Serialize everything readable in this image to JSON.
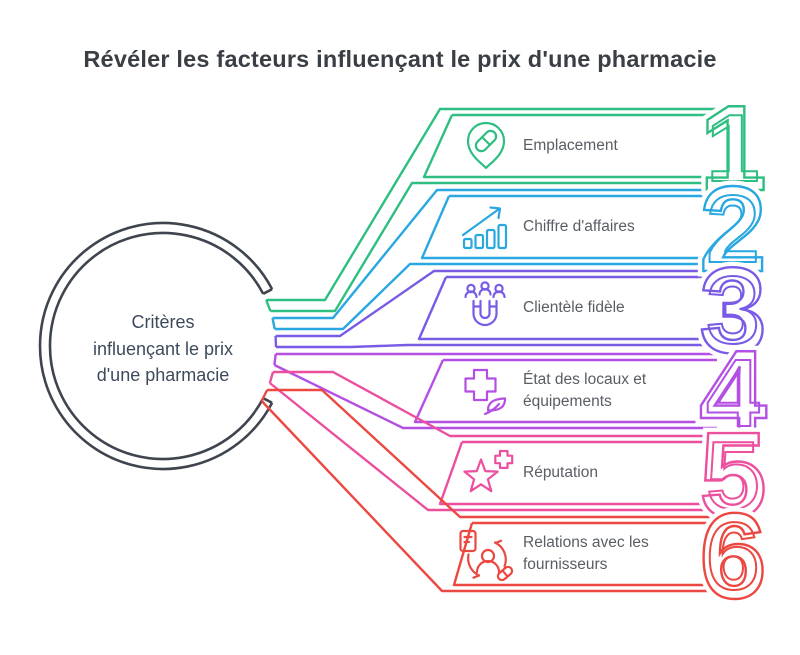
{
  "title": "Révéler les facteurs influençant le prix d'une pharmacie",
  "hub": {
    "lines": [
      "Critères",
      "influençant le prix",
      "d'une pharmacie"
    ]
  },
  "colors": {
    "outline_dark": "#3F454E",
    "title_text": "#3A3E45",
    "hub_text": "#3D4A5C",
    "label_text": "#595D64"
  },
  "items": [
    {
      "number": "1",
      "label_lines": [
        "Emplacement"
      ],
      "color": "#2FBE81",
      "icon": "pill-location-icon"
    },
    {
      "number": "2",
      "label_lines": [
        "Chiffre d'affaires"
      ],
      "color": "#29A7E1",
      "icon": "bar-chart-growth-icon"
    },
    {
      "number": "3",
      "label_lines": [
        "Clientèle fidèle"
      ],
      "color": "#7A5BE6",
      "icon": "customer-magnet-icon"
    },
    {
      "number": "4",
      "label_lines": [
        "État des locaux et",
        "équipements"
      ],
      "color": "#B44FE3",
      "icon": "medical-cross-leaf-icon"
    },
    {
      "number": "5",
      "label_lines": [
        "Réputation"
      ],
      "color": "#EC4F9E",
      "icon": "star-plus-icon"
    },
    {
      "number": "6",
      "label_lines": [
        "Relations avec les",
        "fournisseurs"
      ],
      "color": "#EC4842",
      "icon": "supplier-relations-icon"
    }
  ]
}
